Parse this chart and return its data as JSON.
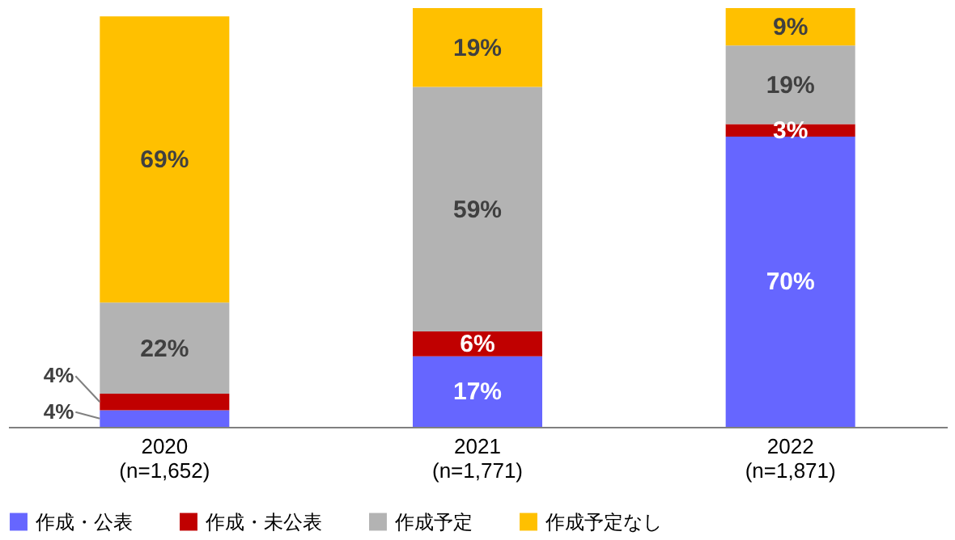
{
  "chart_data": {
    "type": "bar",
    "stacked": true,
    "legend": "bottom",
    "categories": [
      "2020\n(n=1,652)",
      "2021\n(n=1,771)",
      "2022\n(n=1,871)"
    ],
    "series": [
      {
        "name": "作成・公表",
        "color": "#6666ff",
        "values": [
          4,
          17,
          70
        ],
        "value_labels": [
          "4%",
          "17%",
          "70%"
        ]
      },
      {
        "name": "作成・未公表",
        "color": "#c00000",
        "values": [
          4,
          6,
          3
        ],
        "value_labels": [
          "4%",
          "6%",
          "3%"
        ]
      },
      {
        "name": "作成予定",
        "color": "#b3b3b3",
        "values": [
          22,
          59,
          19
        ],
        "value_labels": [
          "22%",
          "59%",
          "19%"
        ]
      },
      {
        "name": "作成予定なし",
        "color": "#ffc000",
        "values": [
          69,
          19,
          9
        ],
        "value_labels": [
          "69%",
          "19%",
          "9%"
        ]
      }
    ]
  }
}
